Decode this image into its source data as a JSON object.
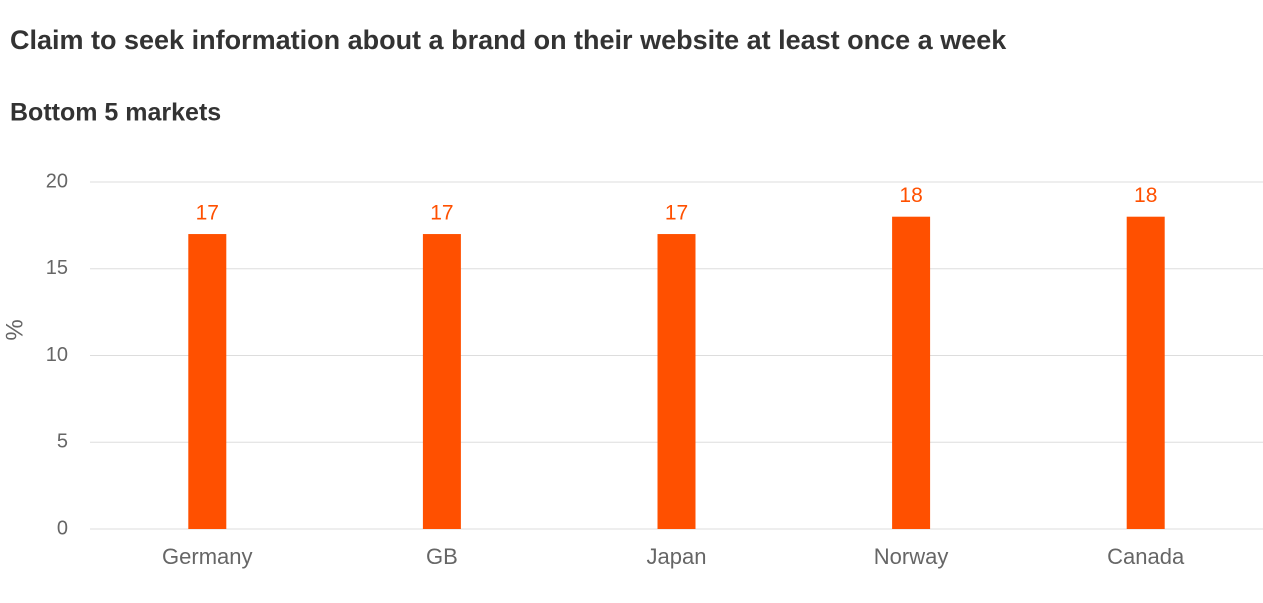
{
  "chart_data": {
    "type": "bar",
    "title": "Claim to seek information about a brand on their website at least once a week",
    "subtitle": "Bottom 5 markets",
    "y_label": "%",
    "categories": [
      "Germany",
      "GB",
      "Japan",
      "Norway",
      "Canada"
    ],
    "values": [
      17,
      17,
      17,
      18,
      18
    ],
    "color": "#ff5000",
    "ylim": [
      0,
      20
    ],
    "yticks": [
      0,
      5,
      10,
      15,
      20
    ],
    "grid": true
  }
}
